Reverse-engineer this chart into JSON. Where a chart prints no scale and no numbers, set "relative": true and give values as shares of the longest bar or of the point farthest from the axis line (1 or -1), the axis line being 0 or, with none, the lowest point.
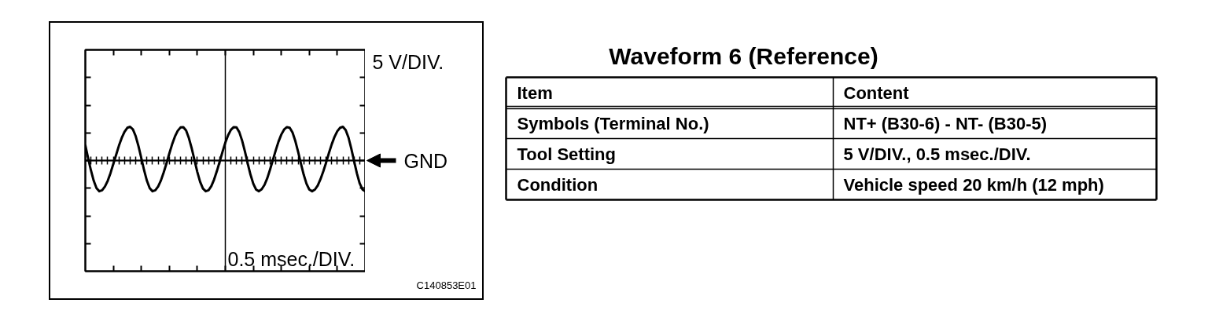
{
  "chart_data": [
    {
      "type": "line",
      "relative": true,
      "tick_labels": false,
      "xlabel": "0.5 msec./DIV.",
      "ylabel": "5 V/DIV.",
      "categories": [
        null,
        null,
        null,
        null,
        null,
        null,
        null,
        null,
        null,
        null,
        null,
        null,
        null,
        null,
        null,
        null,
        null,
        null,
        null,
        null,
        null,
        null,
        null,
        null,
        null,
        null,
        null,
        null,
        null,
        null,
        null,
        null,
        null,
        null,
        null,
        null,
        null,
        null,
        null,
        null,
        null,
        null,
        null,
        null,
        null,
        null,
        null,
        null,
        null,
        null,
        null,
        null,
        null,
        null,
        null,
        null,
        null,
        null,
        null,
        null,
        null,
        null,
        null,
        null,
        null,
        null,
        null,
        null,
        null,
        null,
        null,
        null,
        null,
        null,
        null,
        null,
        null,
        null,
        null,
        null,
        null,
        null,
        null,
        null,
        null,
        null,
        null,
        null,
        null,
        null,
        null,
        null,
        null,
        null,
        null,
        null,
        null,
        null,
        null,
        null,
        null
      ],
      "color": "#000000",
      "values": [
        0.45,
        0.07,
        -0.29,
        -0.6,
        -0.82,
        -0.91,
        -0.88,
        -0.77,
        -0.6,
        -0.37,
        -0.1,
        0.17,
        0.44,
        0.67,
        0.85,
        0.97,
        1.0,
        0.92,
        0.72,
        0.42,
        0.07,
        -0.29,
        -0.6,
        -0.82,
        -0.91,
        -0.88,
        -0.77,
        -0.59,
        -0.35,
        -0.08,
        0.21,
        0.48,
        0.71,
        0.88,
        0.98,
        0.99,
        0.89,
        0.66,
        0.36,
        0.01,
        -0.34,
        -0.63,
        -0.83,
        -0.91,
        -0.88,
        -0.76,
        -0.56,
        -0.31,
        -0.03,
        0.26,
        0.53,
        0.75,
        0.91,
        0.99,
        0.98,
        0.84,
        0.59,
        0.27,
        -0.09,
        -0.42,
        -0.69,
        -0.86,
        -0.91,
        -0.85,
        -0.72,
        -0.52,
        -0.26,
        0.02,
        0.3,
        0.56,
        0.77,
        0.92,
        0.99,
        0.97,
        0.83,
        0.58,
        0.26,
        -0.09,
        -0.42,
        -0.69,
        -0.86,
        -0.91,
        -0.86,
        -0.74,
        -0.55,
        -0.32,
        -0.06,
        0.22,
        0.48,
        0.7,
        0.87,
        0.97,
        1.0,
        0.9,
        0.68,
        0.35,
        -0.02,
        -0.38,
        -0.68,
        -0.86,
        -0.91
      ],
      "ref_lines": [
        {
          "axis": "y",
          "value": 0,
          "label": "GND"
        }
      ],
      "annotations": [
        "C140853E01"
      ]
    },
    {
      "type": "other",
      "title": "Waveform 6 (Reference)",
      "annotations": [
        "Item",
        "Content",
        "Symbols (Terminal No.)",
        "NT+ (B30-6) - NT- (B30-5)",
        "Tool Setting",
        "5 V/DIV., 0.5 msec./DIV.",
        "Condition",
        "Vehicle speed 20 km/h (12 mph)"
      ]
    }
  ]
}
